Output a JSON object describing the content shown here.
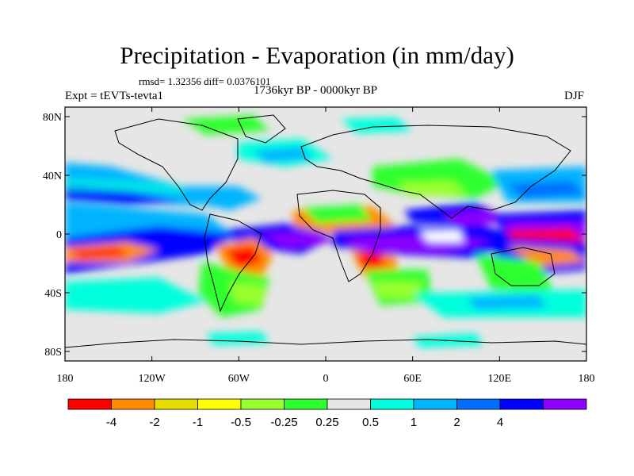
{
  "title": "Precipitation - Evaporation (in mm/day)",
  "stats_line": "rmsd= 1.32356  diff= 0.0376101",
  "period": "1736kyr BP - 0000kyr BP",
  "experiment": "Expt = tEVTs-tevta1",
  "season": "DJF",
  "map": {
    "lat_ticks": [
      "80N",
      "40N",
      "0",
      "40S",
      "80S"
    ],
    "lat_values": [
      80,
      40,
      0,
      -40,
      -80
    ],
    "lon_ticks": [
      "180",
      "120W",
      "60W",
      "0",
      "60E",
      "120E",
      "180"
    ],
    "lon_values": [
      -180,
      -120,
      -60,
      0,
      60,
      120,
      180
    ],
    "background_color": "#e6e6e6"
  },
  "colorbar": {
    "colors": [
      "#ff0000",
      "#ff8c00",
      "#e6dc00",
      "#ffff00",
      "#9aff2e",
      "#2eff2e",
      "#e6e6e6",
      "#00ffdc",
      "#00b4ff",
      "#006eff",
      "#0000ff",
      "#8c00ff"
    ],
    "labels": [
      "-4",
      "-2",
      "-1",
      "-0.5",
      "-0.25",
      "0.25",
      "0.5",
      "1",
      "2",
      "4"
    ],
    "levels": [
      -4,
      -2,
      -1,
      -0.5,
      -0.25,
      0.25,
      0.5,
      1,
      2,
      4
    ]
  }
}
